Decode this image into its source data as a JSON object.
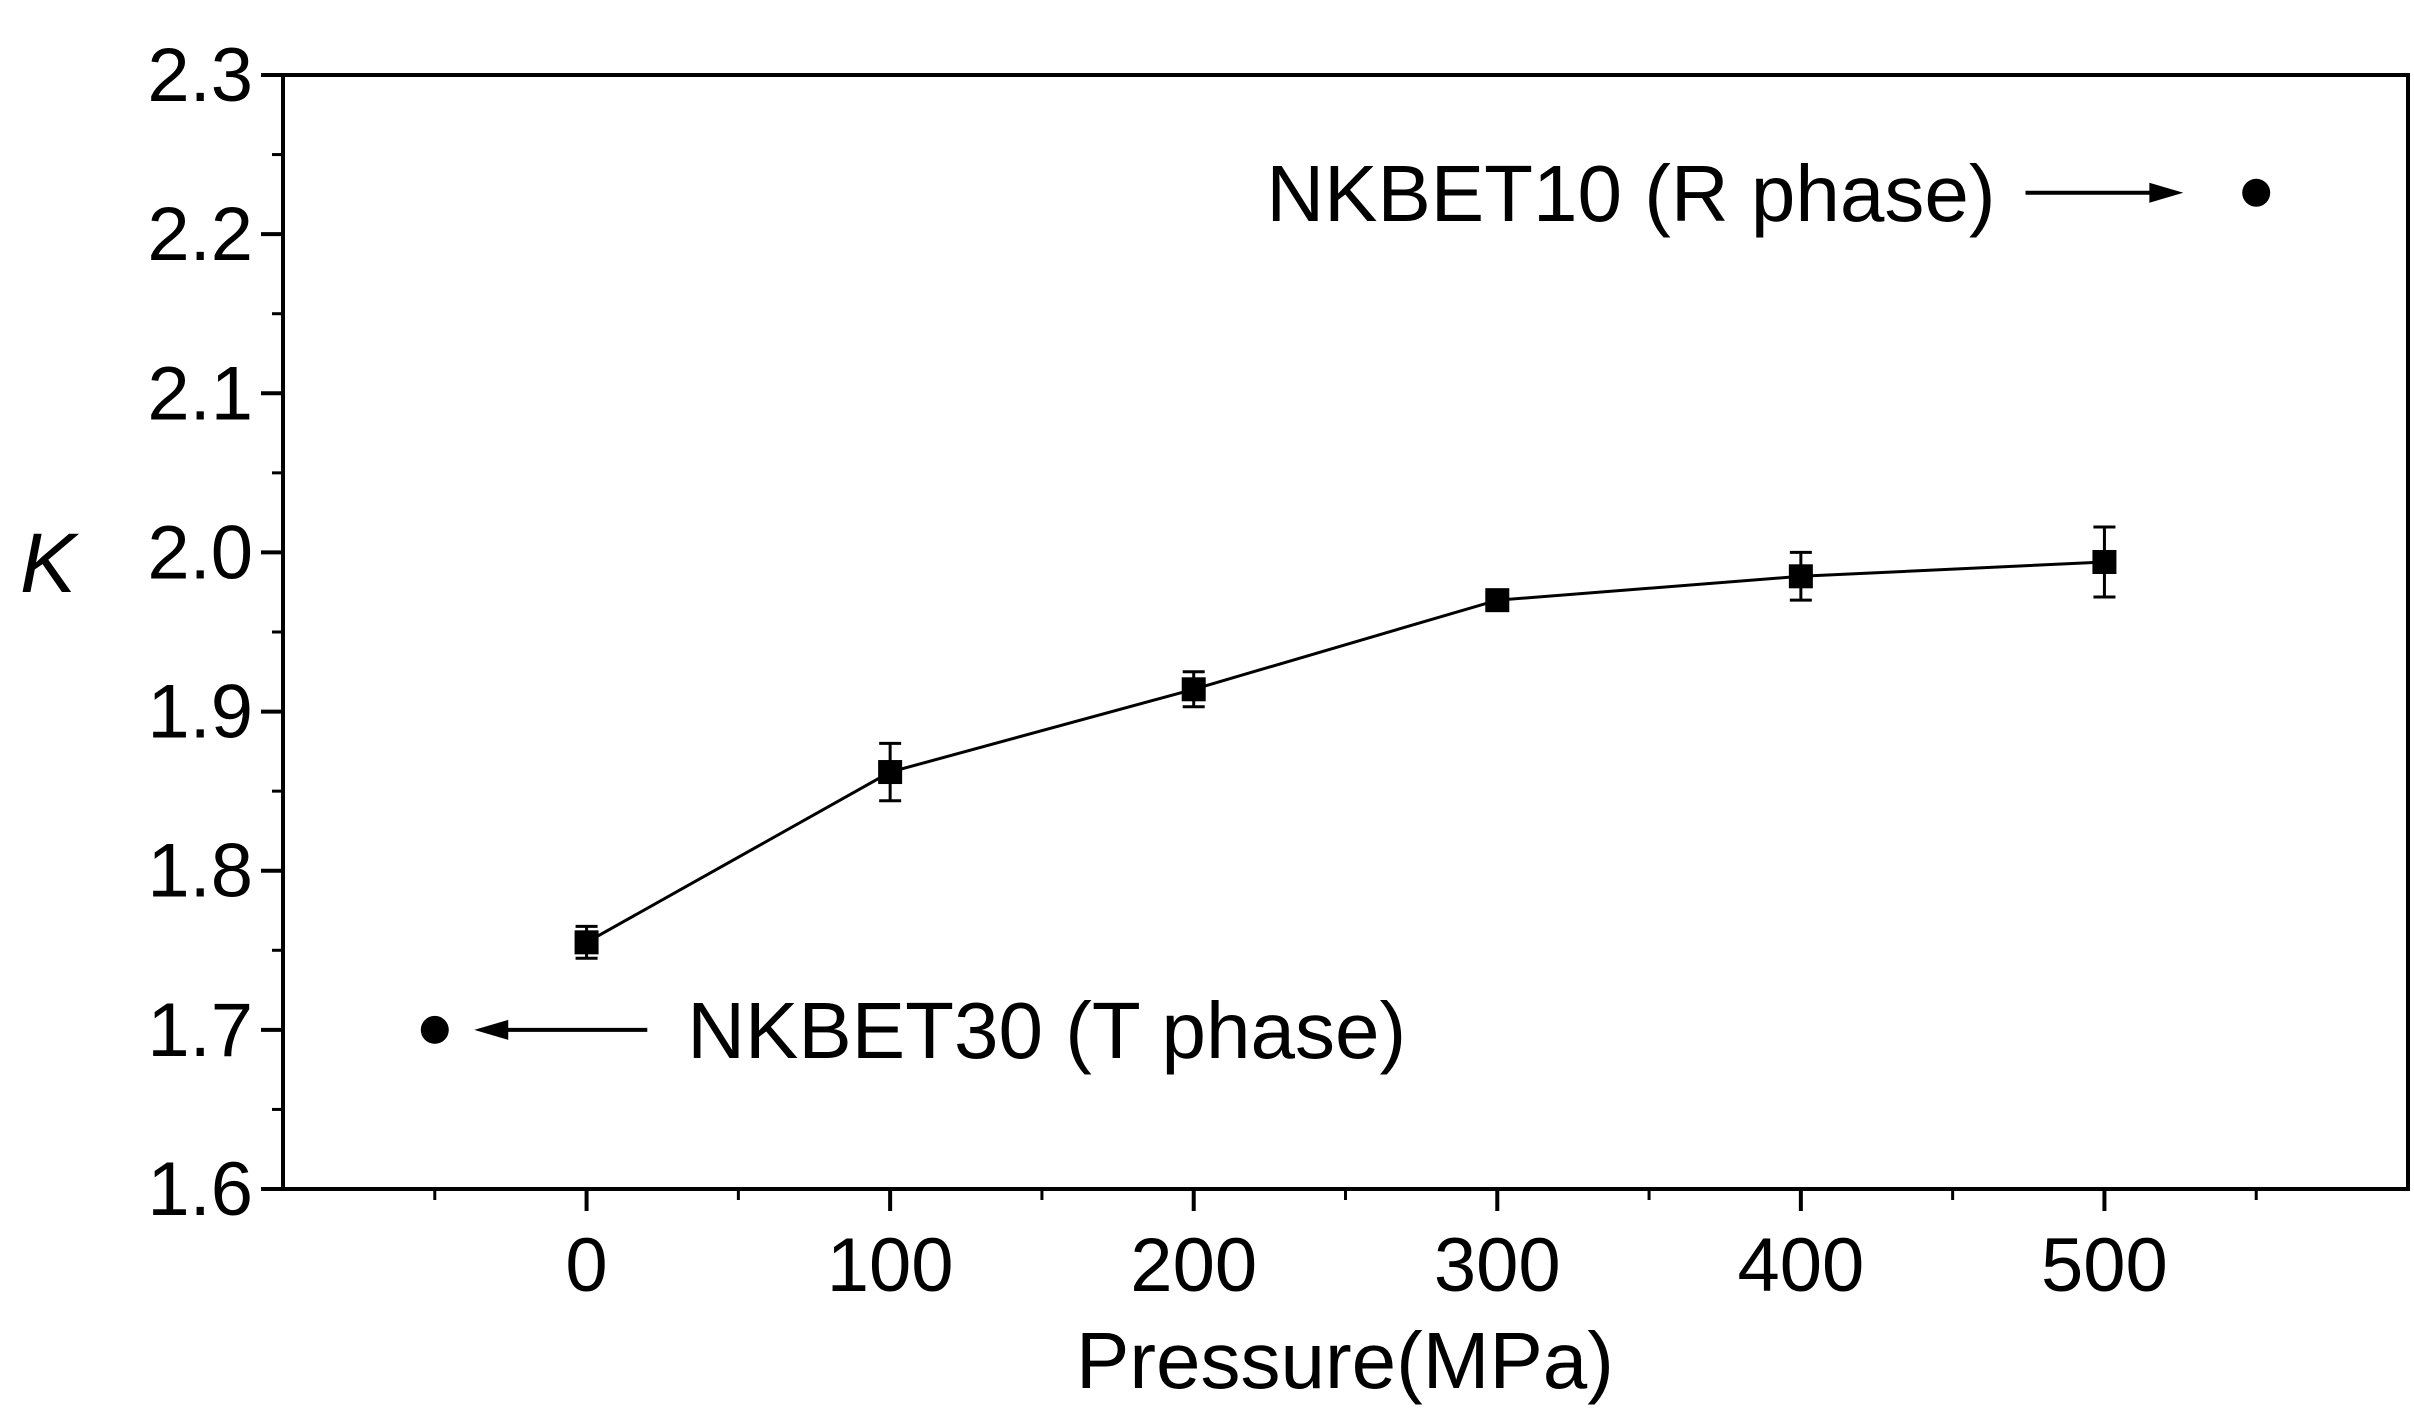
{
  "chart_data": {
    "type": "line",
    "title": "",
    "xlabel": "Pressure(MPa)",
    "ylabel": "K",
    "xlim": [
      -100,
      600
    ],
    "ylim": [
      1.6,
      2.3
    ],
    "xticks": [
      0,
      100,
      200,
      300,
      400,
      500
    ],
    "xtick_labels": [
      "0",
      "100",
      "200",
      "300",
      "400",
      "500"
    ],
    "yticks": [
      1.6,
      1.7,
      1.8,
      1.9,
      2.0,
      2.1,
      2.2,
      2.3
    ],
    "ytick_labels": [
      "1.6",
      "1.7",
      "1.8",
      "1.9",
      "2.0",
      "2.1",
      "2.2",
      "2.3"
    ],
    "grid": false,
    "series": [
      {
        "name": "NKBET",
        "marker": "square",
        "x": [
          0,
          100,
          200,
          300,
          400,
          500
        ],
        "y": [
          1.755,
          1.862,
          1.914,
          1.97,
          1.985,
          1.994
        ],
        "error": [
          0.01,
          0.018,
          0.011,
          0.006,
          0.015,
          0.022
        ]
      }
    ],
    "reference_points": [
      {
        "name": "NKBET10",
        "x": 550,
        "y": 2.226,
        "label": "NKBET10 (R phase)",
        "arrow_from_x": 474,
        "arrow_to_x": 526
      },
      {
        "name": "NKBET30",
        "x": -50,
        "y": 1.7,
        "label": "NKBET30 (T phase)",
        "arrow_from_x": 20,
        "arrow_to_x": -37
      }
    ]
  }
}
